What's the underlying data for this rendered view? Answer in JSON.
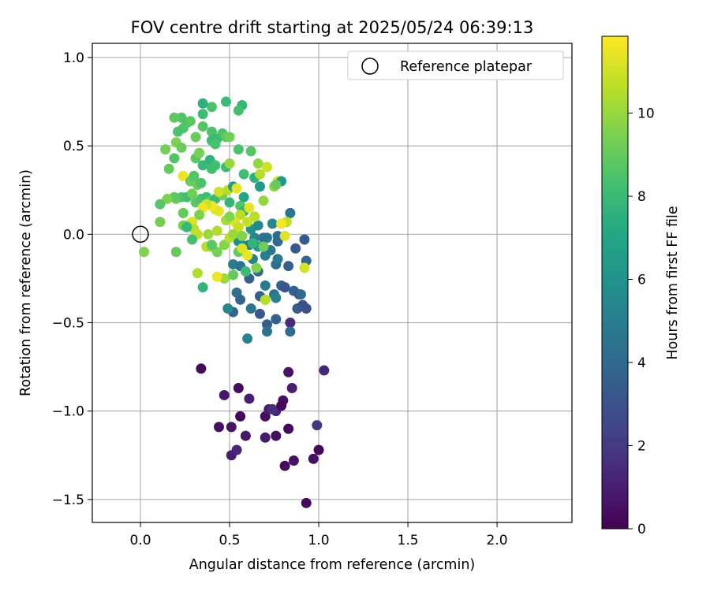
{
  "chart_data": {
    "type": "scatter",
    "title": "FOV centre drift starting at 2025/05/24 06:39:13",
    "xlabel": "Angular distance from reference (arcmin)",
    "ylabel": "Rotation from reference (arcmin)",
    "colorbar_label": "Hours from first FF file",
    "xlim": [
      -0.27,
      2.42
    ],
    "ylim": [
      -1.63,
      1.08
    ],
    "x_ticks": [
      0.0,
      0.5,
      1.0,
      1.5,
      2.0
    ],
    "x_tick_labels": [
      "0.0",
      "0.5",
      "1.0",
      "1.5",
      "2.0"
    ],
    "y_ticks": [
      1.0,
      0.5,
      0.0,
      -0.5,
      -1.0,
      -1.5
    ],
    "y_tick_labels": [
      "1.0",
      "0.5",
      "0.0",
      "−0.5",
      "−1.0",
      "−1.5"
    ],
    "colorbar_range": [
      0,
      11.85
    ],
    "colorbar_ticks": [
      0,
      2,
      4,
      6,
      8,
      10
    ],
    "colorbar_tick_labels": [
      "0",
      "2",
      "4",
      "6",
      "8",
      "10"
    ],
    "colormap": "viridis",
    "grid": true,
    "legend": {
      "position": "top-right",
      "entries": [
        "Reference platepar"
      ]
    },
    "reference_point": {
      "x": 0.0,
      "y": 0.0
    },
    "points": [
      [
        0.34,
        -0.76,
        0.3
      ],
      [
        0.47,
        -0.91,
        0.8
      ],
      [
        0.55,
        -0.87,
        0.4
      ],
      [
        0.61,
        -0.93,
        1.0
      ],
      [
        0.44,
        -1.09,
        0.5
      ],
      [
        0.51,
        -1.09,
        0.6
      ],
      [
        0.56,
        -1.03,
        0.2
      ],
      [
        0.59,
        -1.14,
        0.7
      ],
      [
        0.7,
        -1.03,
        0.4
      ],
      [
        0.72,
        -0.99,
        0.9
      ],
      [
        0.76,
        -1.0,
        1.2
      ],
      [
        0.8,
        -0.94,
        0.5
      ],
      [
        0.83,
        -0.78,
        0.6
      ],
      [
        0.85,
        -0.87,
        1.1
      ],
      [
        0.83,
        -1.1,
        0.3
      ],
      [
        0.7,
        -1.15,
        0.8
      ],
      [
        0.76,
        -1.14,
        0.4
      ],
      [
        0.81,
        -1.31,
        0.3
      ],
      [
        0.86,
        -1.28,
        0.6
      ],
      [
        0.97,
        -1.27,
        0.5
      ],
      [
        1.0,
        -1.22,
        0.2
      ],
      [
        0.99,
        -1.08,
        1.9
      ],
      [
        1.03,
        -0.77,
        1.3
      ],
      [
        0.93,
        -1.52,
        0.4
      ],
      [
        0.51,
        -1.25,
        0.9
      ],
      [
        0.54,
        -1.22,
        1.3
      ],
      [
        0.74,
        -0.99,
        1.6
      ],
      [
        0.79,
        -0.97,
        0.2
      ],
      [
        0.71,
        -0.51,
        3.5
      ],
      [
        0.71,
        -0.55,
        4.4
      ],
      [
        0.76,
        -0.48,
        3.6
      ],
      [
        0.84,
        -0.5,
        1.5
      ],
      [
        0.84,
        -0.55,
        4.2
      ],
      [
        0.6,
        -0.59,
        5.2
      ],
      [
        0.52,
        -0.44,
        3.8
      ],
      [
        0.49,
        -0.42,
        5.5
      ],
      [
        0.62,
        -0.42,
        4.6
      ],
      [
        0.67,
        -0.45,
        3.2
      ],
      [
        0.54,
        -0.33,
        4.4
      ],
      [
        0.56,
        -0.37,
        3.8
      ],
      [
        0.67,
        -0.35,
        3.5
      ],
      [
        0.7,
        -0.37,
        3.2
      ],
      [
        0.7,
        -0.29,
        4.8
      ],
      [
        0.66,
        -0.21,
        4.0
      ],
      [
        0.61,
        -0.25,
        3.7
      ],
      [
        0.52,
        -0.17,
        5.0
      ],
      [
        0.56,
        -0.18,
        4.5
      ],
      [
        0.63,
        -0.14,
        5.2
      ],
      [
        0.66,
        -0.07,
        6.2
      ],
      [
        0.7,
        -0.12,
        5.0
      ],
      [
        0.73,
        -0.09,
        4.7
      ],
      [
        0.76,
        -0.17,
        4.2
      ],
      [
        0.77,
        -0.14,
        4.8
      ],
      [
        0.79,
        -0.29,
        3.7
      ],
      [
        0.75,
        -0.34,
        4.5
      ],
      [
        0.76,
        -0.36,
        5.0
      ],
      [
        0.81,
        -0.3,
        3.1
      ],
      [
        0.83,
        -0.18,
        3.6
      ],
      [
        0.86,
        -0.32,
        3.8
      ],
      [
        0.89,
        -0.34,
        2.9
      ],
      [
        0.9,
        -0.34,
        4.1
      ],
      [
        0.88,
        -0.42,
        3.4
      ],
      [
        0.91,
        -0.4,
        3.0
      ],
      [
        0.93,
        -0.42,
        2.9
      ],
      [
        0.93,
        -0.15,
        3.9
      ],
      [
        0.87,
        -0.08,
        3.3
      ],
      [
        0.92,
        -0.03,
        3.4
      ],
      [
        0.84,
        0.12,
        4.6
      ],
      [
        0.74,
        0.06,
        5.5
      ],
      [
        0.77,
        -0.01,
        4.2
      ],
      [
        0.71,
        -0.02,
        5.0
      ],
      [
        0.69,
        -0.02,
        4.5
      ],
      [
        0.64,
        -0.02,
        5.3
      ],
      [
        0.62,
        0.03,
        6.0
      ],
      [
        0.66,
        0.05,
        5.5
      ],
      [
        0.57,
        -0.06,
        6.3
      ],
      [
        0.55,
        -0.04,
        5.8
      ],
      [
        0.61,
        -0.06,
        5.0
      ],
      [
        0.77,
        -0.04,
        4.0
      ],
      [
        0.57,
        0.73,
        7.8
      ],
      [
        0.48,
        0.75,
        8.0
      ],
      [
        0.55,
        0.7,
        8.3
      ],
      [
        0.4,
        0.72,
        8.5
      ],
      [
        0.35,
        0.74,
        7.5
      ],
      [
        0.35,
        0.68,
        8.1
      ],
      [
        0.23,
        0.66,
        8.6
      ],
      [
        0.26,
        0.63,
        8.4
      ],
      [
        0.19,
        0.66,
        8.9
      ],
      [
        0.28,
        0.64,
        8.8
      ],
      [
        0.35,
        0.61,
        8.7
      ],
      [
        0.4,
        0.58,
        8.4
      ],
      [
        0.43,
        0.54,
        8.0
      ],
      [
        0.46,
        0.57,
        8.4
      ],
      [
        0.48,
        0.55,
        8.9
      ],
      [
        0.5,
        0.55,
        9.3
      ],
      [
        0.4,
        0.53,
        8.1
      ],
      [
        0.42,
        0.51,
        8.4
      ],
      [
        0.31,
        0.55,
        9.1
      ],
      [
        0.24,
        0.6,
        8.6
      ],
      [
        0.21,
        0.58,
        8.4
      ],
      [
        0.2,
        0.52,
        9.5
      ],
      [
        0.23,
        0.49,
        9.1
      ],
      [
        0.14,
        0.48,
        9.3
      ],
      [
        0.19,
        0.43,
        8.6
      ],
      [
        0.31,
        0.43,
        8.8
      ],
      [
        0.33,
        0.46,
        9.4
      ],
      [
        0.39,
        0.42,
        7.6
      ],
      [
        0.42,
        0.39,
        8.3
      ],
      [
        0.35,
        0.39,
        7.9
      ],
      [
        0.4,
        0.37,
        8.2
      ],
      [
        0.48,
        0.38,
        8.0
      ],
      [
        0.5,
        0.4,
        10.0
      ],
      [
        0.55,
        0.48,
        8.4
      ],
      [
        0.62,
        0.47,
        8.7
      ],
      [
        0.58,
        0.34,
        8.2
      ],
      [
        0.64,
        0.32,
        7.5
      ],
      [
        0.66,
        0.4,
        10.0
      ],
      [
        0.71,
        0.38,
        11.0
      ],
      [
        0.67,
        0.34,
        10.5
      ],
      [
        0.75,
        0.27,
        10.0
      ],
      [
        0.77,
        0.3,
        11.2
      ],
      [
        0.79,
        0.3,
        6.2
      ],
      [
        0.67,
        0.27,
        6.4
      ],
      [
        0.16,
        0.37,
        9.0
      ],
      [
        0.24,
        0.33,
        11.5
      ],
      [
        0.28,
        0.3,
        9.1
      ],
      [
        0.3,
        0.33,
        8.6
      ],
      [
        0.32,
        0.28,
        9.2
      ],
      [
        0.34,
        0.29,
        8.5
      ],
      [
        0.2,
        0.2,
        9.4
      ],
      [
        0.23,
        0.21,
        8.6
      ],
      [
        0.26,
        0.21,
        8.2
      ],
      [
        0.29,
        0.23,
        9.3
      ],
      [
        0.31,
        0.18,
        8.8
      ],
      [
        0.34,
        0.2,
        8.5
      ],
      [
        0.37,
        0.21,
        8.1
      ],
      [
        0.39,
        0.19,
        8.7
      ],
      [
        0.42,
        0.2,
        8.0
      ],
      [
        0.46,
        0.22,
        9.3
      ],
      [
        0.44,
        0.24,
        11.0
      ],
      [
        0.49,
        0.25,
        10.6
      ],
      [
        0.52,
        0.27,
        6.5
      ],
      [
        0.54,
        0.26,
        11.4
      ],
      [
        0.58,
        0.21,
        7.0
      ],
      [
        0.5,
        0.18,
        7.8
      ],
      [
        0.56,
        0.16,
        8.6
      ],
      [
        0.58,
        0.13,
        7.6
      ],
      [
        0.61,
        0.15,
        11.4
      ],
      [
        0.64,
        0.1,
        10.5
      ],
      [
        0.69,
        0.19,
        9.9
      ],
      [
        0.56,
        0.11,
        10.6
      ],
      [
        0.6,
        0.07,
        10.8
      ],
      [
        0.53,
        0.07,
        11.3
      ],
      [
        0.55,
        0.04,
        10.8
      ],
      [
        0.48,
        0.08,
        10.2
      ],
      [
        0.44,
        0.13,
        11.5
      ],
      [
        0.42,
        0.14,
        11.3
      ],
      [
        0.4,
        0.16,
        11.7
      ],
      [
        0.37,
        0.17,
        11.0
      ],
      [
        0.35,
        0.15,
        11.6
      ],
      [
        0.33,
        0.11,
        9.5
      ],
      [
        0.29,
        0.07,
        11.2
      ],
      [
        0.26,
        0.05,
        10.1
      ],
      [
        0.24,
        0.05,
        9.4
      ],
      [
        0.24,
        0.12,
        9.0
      ],
      [
        0.19,
        0.21,
        8.8
      ],
      [
        0.15,
        0.2,
        9.5
      ],
      [
        0.11,
        0.17,
        8.7
      ],
      [
        0.11,
        0.07,
        9.3
      ],
      [
        0.3,
        0.03,
        10.5
      ],
      [
        0.32,
        0.0,
        10.8
      ],
      [
        0.38,
        0.0,
        10.1
      ],
      [
        0.37,
        -0.07,
        10.6
      ],
      [
        0.43,
        0.02,
        10.4
      ],
      [
        0.4,
        -0.07,
        9.8
      ],
      [
        0.43,
        -0.1,
        9.4
      ],
      [
        0.47,
        -0.06,
        9.7
      ],
      [
        0.5,
        -0.02,
        10.7
      ],
      [
        0.52,
        0.0,
        10.1
      ],
      [
        0.57,
        -0.01,
        9.6
      ],
      [
        0.55,
        -0.1,
        9.0
      ],
      [
        0.57,
        -0.08,
        11.2
      ],
      [
        0.6,
        -0.12,
        11.5
      ],
      [
        0.63,
        -0.05,
        7.7
      ],
      [
        0.69,
        -0.07,
        9.2
      ],
      [
        0.65,
        -0.19,
        9.6
      ],
      [
        0.59,
        -0.21,
        8.0
      ],
      [
        0.52,
        -0.23,
        9.0
      ],
      [
        0.47,
        -0.25,
        10.1
      ],
      [
        0.43,
        -0.24,
        11.6
      ],
      [
        0.32,
        -0.22,
        10.4
      ],
      [
        0.35,
        -0.3,
        7.7
      ],
      [
        0.02,
        -0.1,
        9.6
      ],
      [
        0.2,
        -0.1,
        9.0
      ],
      [
        0.7,
        -0.37,
        10.6
      ],
      [
        0.92,
        -0.19,
        11.1
      ],
      [
        0.82,
        0.07,
        10.7
      ],
      [
        0.81,
        -0.01,
        11.3
      ],
      [
        0.79,
        0.06,
        11.7
      ],
      [
        0.29,
        -0.03,
        8.3
      ],
      [
        0.4,
        -0.06,
        8.8
      ],
      [
        0.26,
        0.04,
        7.9
      ],
      [
        0.5,
        0.1,
        9.6
      ],
      [
        0.76,
        0.28,
        9.0
      ]
    ]
  }
}
